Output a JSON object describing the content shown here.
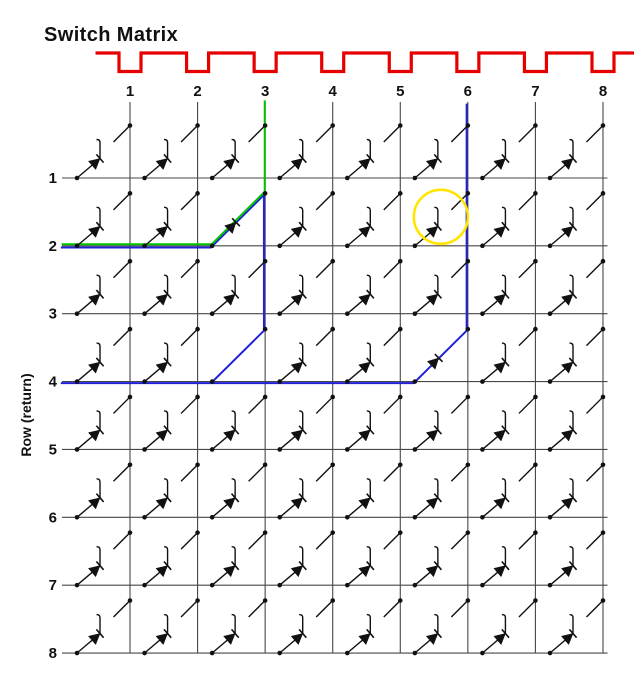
{
  "title": "Switch Matrix",
  "row_axis_label": "Row (return)",
  "column_labels": [
    "1",
    "2",
    "3",
    "4",
    "5",
    "6",
    "7",
    "8"
  ],
  "row_labels": [
    "1",
    "2",
    "3",
    "4",
    "5",
    "6",
    "7",
    "8"
  ],
  "clock_waveform": {
    "pulse_count": 8,
    "one_low_pulse_per_column": true
  },
  "colors": {
    "scan_wave": "#e60000",
    "grid": "#474747",
    "symbol": "#111111",
    "active_path_green": "#00c300",
    "ghost_path_blue": "#2121d8",
    "highlight_circle": "#ffe500"
  },
  "closed_switches": [
    {
      "row": 2,
      "col": 3,
      "path_colors": [
        "green",
        "blue"
      ],
      "show_diode": true
    },
    {
      "row": 4,
      "col": 3,
      "path_colors": [
        "blue"
      ],
      "show_diode": false
    },
    {
      "row": 4,
      "col": 6,
      "path_colors": [
        "blue"
      ],
      "show_diode": true
    }
  ],
  "highlighted_switch": {
    "row": 2,
    "col": 6
  },
  "green_path": [
    [
      {
        "t": "edgeL",
        "row": 2
      },
      {
        "t": "rowdot",
        "row": 2,
        "col": 3
      },
      {
        "t": "coldot",
        "row": 2,
        "col": 3
      },
      {
        "t": "coltop",
        "col": 3
      }
    ]
  ],
  "blue_path": [
    [
      {
        "t": "edgeL",
        "row": 2
      },
      {
        "t": "rowdot",
        "row": 2,
        "col": 3
      },
      {
        "t": "coldot",
        "row": 2,
        "col": 3
      },
      {
        "t": "coldot",
        "row": 4,
        "col": 3
      },
      {
        "t": "rowdot",
        "row": 4,
        "col": 3
      },
      {
        "t": "rowdot",
        "row": 4,
        "col": 6
      },
      {
        "t": "coldot",
        "row": 4,
        "col": 6
      },
      {
        "t": "coltop",
        "col": 6
      }
    ],
    [
      {
        "t": "edgeL",
        "row": 4
      },
      {
        "t": "rowdot",
        "row": 4,
        "col": 3
      }
    ]
  ]
}
